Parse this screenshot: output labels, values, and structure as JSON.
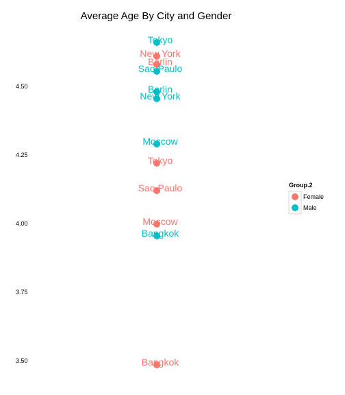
{
  "chart_data": {
    "type": "scatter",
    "title": "Average Age By City and Gender",
    "xlabel": "",
    "ylabel": "",
    "ylim": [
      3.47,
      4.72
    ],
    "yticks": [
      3.5,
      3.75,
      4.0,
      4.25,
      4.5
    ],
    "ytick_labels": [
      "3.50",
      "3.75",
      "4.00",
      "4.25",
      "4.50"
    ],
    "grid": false,
    "legend": {
      "title": "Group.2",
      "position": "right",
      "entries": [
        {
          "label": "Female",
          "color": "#F8766D"
        },
        {
          "label": "Male",
          "color": "#00BFC4"
        }
      ]
    },
    "series": [
      {
        "name": "Female",
        "color": "#F8766D",
        "points": [
          {
            "label": "New York",
            "y": 4.61
          },
          {
            "label": "Berlin",
            "y": 4.58
          },
          {
            "label": "Tokyo",
            "y": 4.22
          },
          {
            "label": "Sao Paulo",
            "y": 4.12
          },
          {
            "label": "Moscow",
            "y": 3.998
          },
          {
            "label": "Bangkok",
            "y": 3.485
          }
        ]
      },
      {
        "name": "Male",
        "color": "#00BFC4",
        "points": [
          {
            "label": "Tokyo",
            "y": 4.66
          },
          {
            "label": "Sao Paulo",
            "y": 4.555
          },
          {
            "label": "Berlin",
            "y": 4.48
          },
          {
            "label": "New York",
            "y": 4.455
          },
          {
            "label": "Moscow",
            "y": 4.29
          },
          {
            "label": "Bangkok",
            "y": 3.955
          }
        ]
      }
    ]
  }
}
